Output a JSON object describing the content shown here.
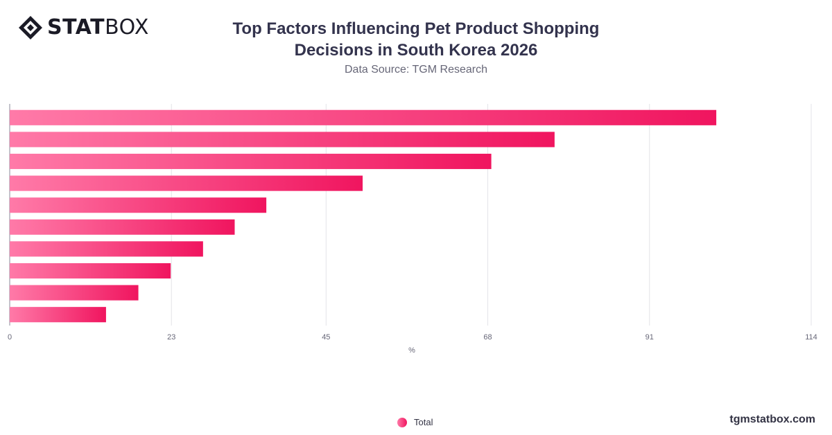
{
  "brand": {
    "logo_bold": "STAT",
    "logo_thin": "BOX",
    "site": "tgmstatbox.com"
  },
  "chart_data": {
    "type": "bar",
    "orientation": "horizontal",
    "title": "Top Factors Influencing Pet Product Shopping Decisions in South Korea 2026",
    "subtitle": "Data Source: TGM Research",
    "xlabel": "%",
    "xlim": [
      0,
      114
    ],
    "ticks": [
      "0",
      "23",
      "45",
      "68",
      "91",
      "114"
    ],
    "tick_values": [
      0,
      23,
      45,
      68,
      91,
      114
    ],
    "grid": true,
    "legend_position": "bottom-center",
    "series": [
      {
        "name": "Total",
        "values": [
          100.5,
          77.5,
          68.5,
          50.2,
          36.5,
          32,
          27.5,
          22.9,
          18.3,
          13.7
        ]
      }
    ],
    "colors": {
      "bar_start": "#ff7aa8",
      "bar_end": "#f0155f",
      "grid": "#e3e3e8",
      "axis": "#666677"
    }
  }
}
